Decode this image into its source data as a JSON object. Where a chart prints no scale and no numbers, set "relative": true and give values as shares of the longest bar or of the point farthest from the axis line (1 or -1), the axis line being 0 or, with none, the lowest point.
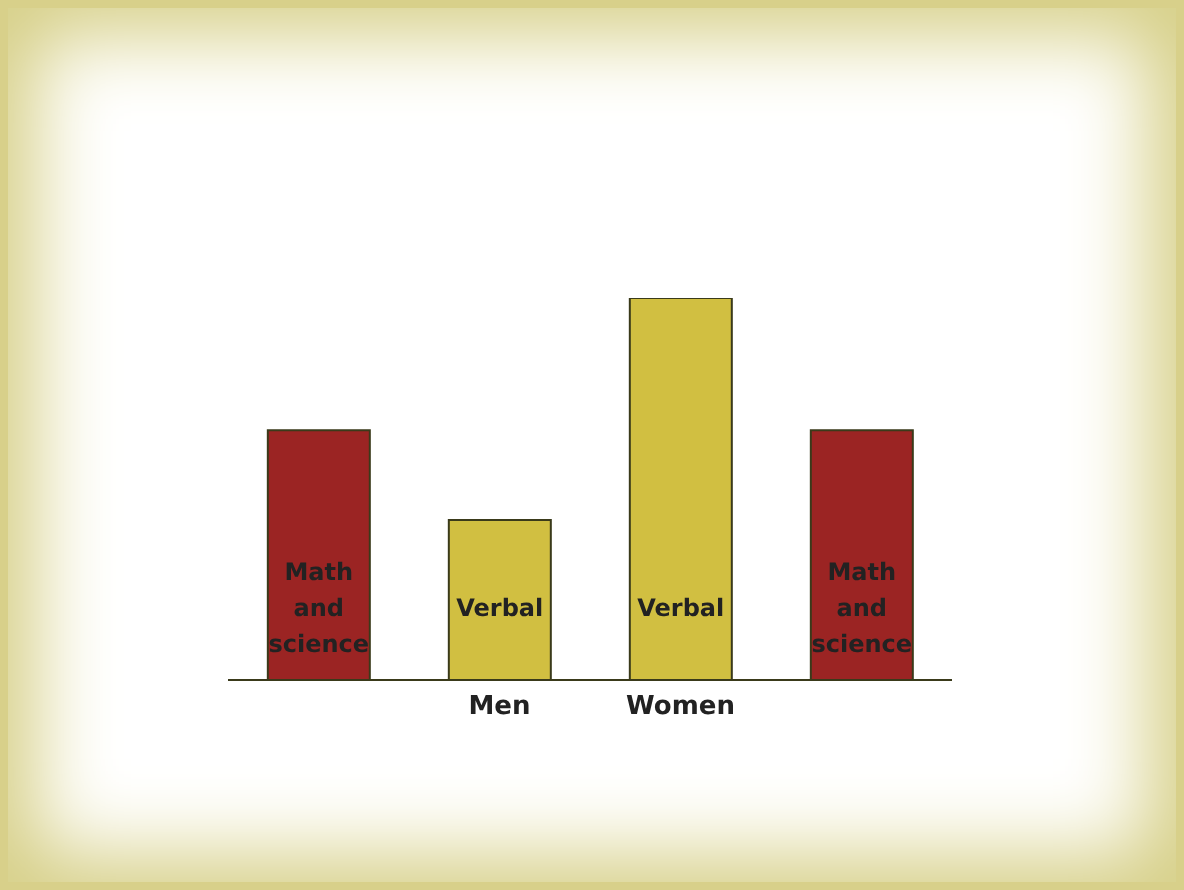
{
  "chart_data": {
    "type": "bar",
    "relative": true,
    "categories": [
      null,
      "Men",
      "Women",
      null
    ],
    "series": [
      {
        "name": "Math and science",
        "color": "#9b2423",
        "values": [
          0.654,
          null,
          null,
          0.654
        ]
      },
      {
        "name": "Verbal",
        "color": "#d1bf41",
        "values": [
          null,
          0.419,
          1,
          null
        ]
      }
    ],
    "grid": false,
    "legend": false
  }
}
